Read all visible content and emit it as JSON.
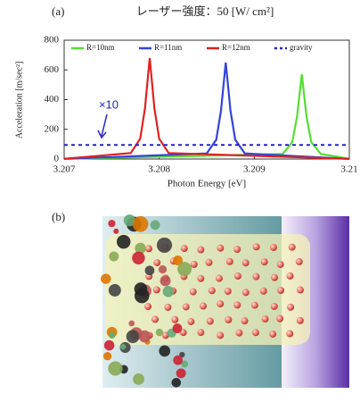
{
  "chart_data": {
    "type": "line",
    "panel_label": "(a)",
    "title": "レーザー強度：50 [W/ cm²]",
    "x_label": "Photon Energy [eV]",
    "y_label": "Acceleration [m/sec²]",
    "xlim": [
      3.207,
      3.21
    ],
    "xticks": [
      3.207,
      3.208,
      3.209,
      3.21
    ],
    "ylim": [
      0,
      800
    ],
    "yticks": [
      0,
      200,
      400,
      600,
      800
    ],
    "annotation": "×10",
    "series": [
      {
        "name": "R=10nm",
        "color": "#55dd33",
        "dash": false,
        "x": [
          3.207,
          3.2093,
          3.2094,
          3.20945,
          3.2095,
          3.20955,
          3.2096,
          3.2097,
          3.21
        ],
        "values": [
          1,
          34,
          114,
          285,
          570,
          285,
          114,
          34,
          2
        ]
      },
      {
        "name": "R=11nm",
        "color": "#3344dd",
        "dash": false,
        "x": [
          3.207,
          3.2085,
          3.2086,
          3.20865,
          3.2087,
          3.20875,
          3.2088,
          3.2089,
          3.21
        ],
        "values": [
          1,
          38,
          130,
          325,
          650,
          325,
          130,
          38,
          1
        ]
      },
      {
        "name": "R=12nm",
        "color": "#dd2222",
        "dash": false,
        "x": [
          3.207,
          3.2077,
          3.2078,
          3.20785,
          3.2079,
          3.20795,
          3.208,
          3.2081,
          3.21
        ],
        "values": [
          2,
          40,
          136,
          340,
          680,
          340,
          136,
          40,
          1
        ]
      },
      {
        "name": "gravity",
        "color": "#2222cc",
        "dash": true,
        "x": [
          3.207,
          3.21
        ],
        "values": [
          95,
          95
        ]
      }
    ]
  },
  "figure_b": {
    "panel_label": "(b)"
  }
}
